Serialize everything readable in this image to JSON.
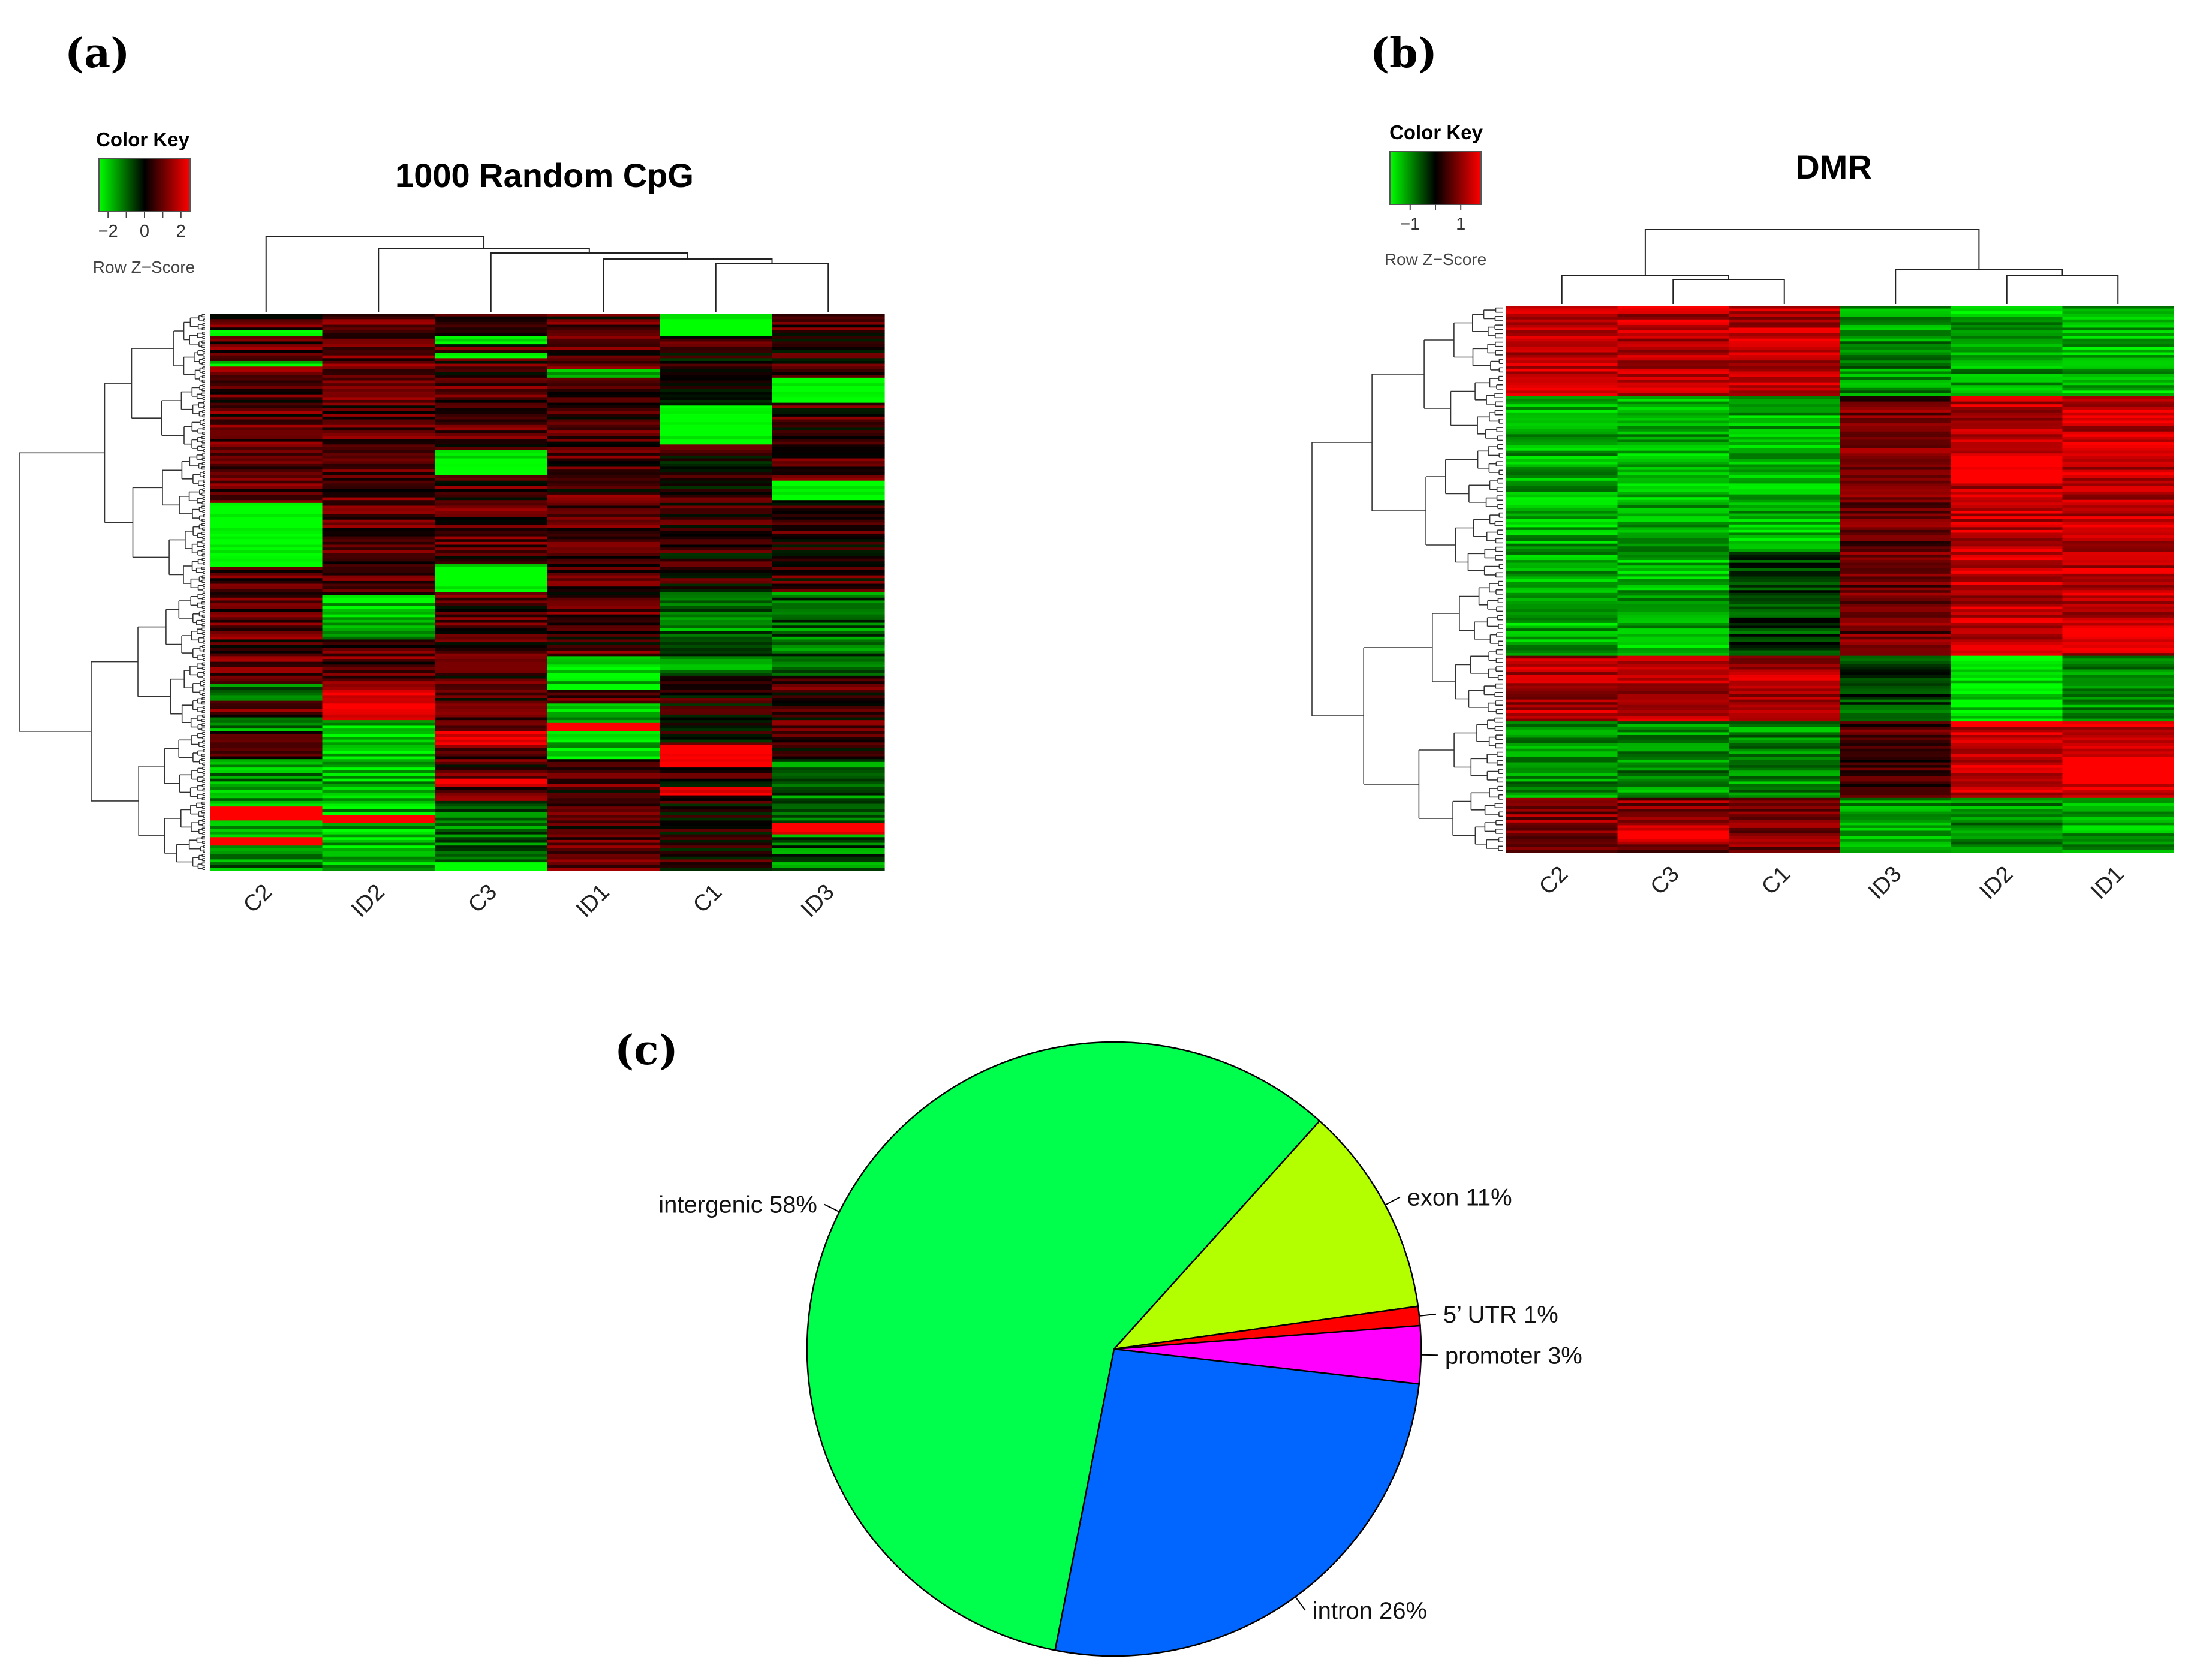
{
  "chart_data": [
    {
      "type": "heatmap",
      "panel": "(a)",
      "title": "1000 Random CpG",
      "color_key": {
        "title": "Color Key",
        "subtitle": "Row Z−Score",
        "ticks": [
          "−2",
          "0",
          "2"
        ],
        "tick_values": [
          -2,
          0,
          2
        ],
        "range": [
          -2.5,
          2.5
        ],
        "colors": [
          "#00ff00",
          "#000000",
          "#ff0000"
        ]
      },
      "columns": [
        "C2",
        "ID2",
        "C3",
        "ID1",
        "C1",
        "ID3"
      ],
      "row_count": 1000,
      "row_dendrogram": true,
      "column_dendrogram": true
    },
    {
      "type": "heatmap",
      "panel": "(b)",
      "title": "DMR",
      "color_key": {
        "title": "Color Key",
        "subtitle": "Row Z−Score",
        "ticks": [
          "−1",
          "1"
        ],
        "tick_values": [
          -1,
          1
        ],
        "range": [
          -1.8,
          1.8
        ],
        "colors": [
          "#00ff00",
          "#000000",
          "#ff0000"
        ]
      },
      "columns": [
        "C2",
        "C3",
        "C1",
        "ID3",
        "ID2",
        "ID1"
      ],
      "row_dendrogram": true,
      "column_dendrogram": true
    },
    {
      "type": "pie",
      "panel": "(c)",
      "slices": [
        {
          "label": "exon 11%",
          "value": 11,
          "color": "#b3ff00"
        },
        {
          "label": "5’ UTR 1%",
          "value": 1,
          "color": "#ff0000"
        },
        {
          "label": "promoter 3%",
          "value": 3,
          "color": "#ff00ff"
        },
        {
          "label": "intron 26%",
          "value": 26,
          "color": "#0066ff"
        },
        {
          "label": "intergenic 58%",
          "value": 58,
          "color": "#00ff4d"
        }
      ]
    }
  ]
}
